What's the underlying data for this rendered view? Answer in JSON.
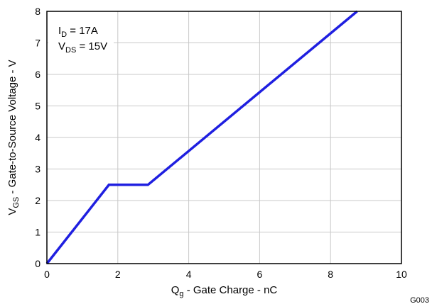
{
  "chart_data": {
    "type": "line",
    "title": "",
    "xlabel": {
      "main": "Q",
      "sub": "g",
      "rest": " - Gate Charge - nC"
    },
    "ylabel": {
      "main": "V",
      "sub": "GS",
      "rest": " - Gate-to-Source Voltage - V"
    },
    "xlim": [
      0,
      10
    ],
    "ylim": [
      0,
      8
    ],
    "xticks": [
      0,
      2,
      4,
      6,
      8,
      10
    ],
    "yticks": [
      0,
      1,
      2,
      3,
      4,
      5,
      6,
      7,
      8
    ],
    "grid": true,
    "series": [
      {
        "color": "#1f1fe0",
        "x": [
          0,
          1.75,
          2.85,
          8.75
        ],
        "y": [
          0,
          2.5,
          2.5,
          8
        ]
      }
    ],
    "annotations": [
      {
        "main": "I",
        "sub": "D",
        "rest": " = 17A"
      },
      {
        "main": "V",
        "sub": "DS",
        "rest": " = 15V"
      }
    ],
    "figure_id": "G003"
  }
}
